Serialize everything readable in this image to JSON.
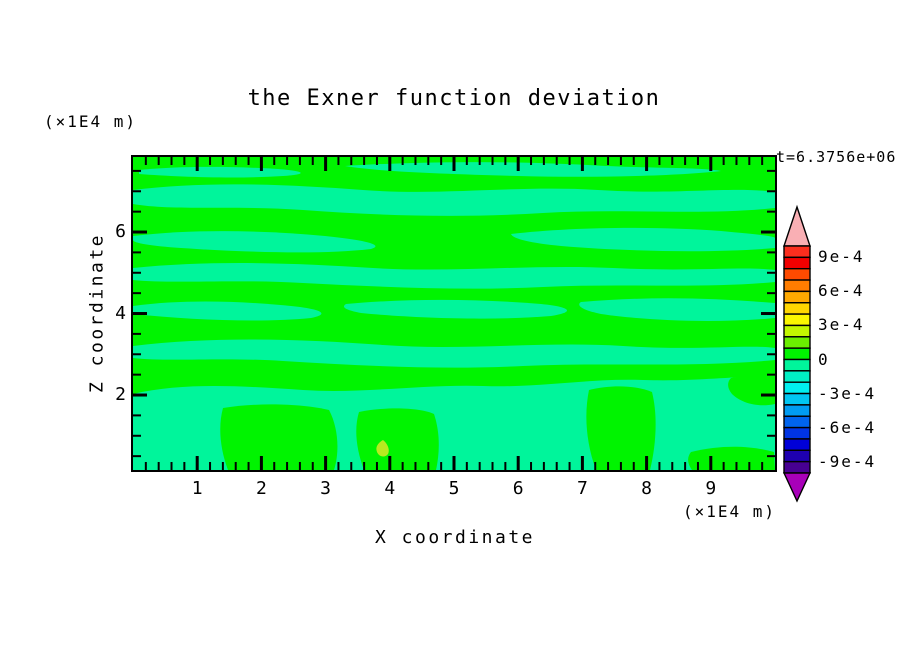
{
  "title": "the Exner function deviation",
  "time_annotation": "t=6.3756e+06",
  "axes": {
    "x": {
      "label": "X coordinate",
      "unit": "(×1E4 m)",
      "major_ticks": [
        "1",
        "2",
        "3",
        "4",
        "5",
        "6",
        "7",
        "8",
        "9"
      ]
    },
    "z": {
      "label": "Z coordinate",
      "unit": "(×1E4 m)",
      "major_ticks": [
        "2",
        "4",
        "6"
      ]
    }
  },
  "colorbar": {
    "labels": [
      {
        "text": "9e-4",
        "level": 9
      },
      {
        "text": "6e-4",
        "level": 6
      },
      {
        "text": "3e-4",
        "level": 3
      },
      {
        "text": "0",
        "level": 0
      },
      {
        "text": "-3e-4",
        "level": -3
      },
      {
        "text": "-6e-4",
        "level": -6
      },
      {
        "text": "-9e-4",
        "level": -9
      }
    ],
    "segment_colors_top_to_bottom": [
      "#FB2E1E",
      "#F10000",
      "#FF4A00",
      "#FF7D00",
      "#FFA900",
      "#FFD600",
      "#FBF600",
      "#C3F700",
      "#6BEE00",
      "#00F400",
      "#00F59B",
      "#00EFC4",
      "#00EFEF",
      "#00C6F2",
      "#009CF2",
      "#0064EE",
      "#0034E4",
      "#0000D8",
      "#1E00B0",
      "#470092"
    ],
    "over_range_color": "#F9AFB4",
    "under_range_color": "#A800B9"
  },
  "field_colors": {
    "positive": "#00F400",
    "negative": "#00F59B",
    "spot": "#B8EA20"
  },
  "chart_data": {
    "type": "heatmap",
    "subtype": "filled_contour",
    "title": "the Exner function deviation",
    "annotation": "t=6.3756e+06",
    "xlabel": "X coordinate",
    "x_unit_scale": "(×1E4 m)",
    "x_range": [
      0,
      10
    ],
    "x_major_tick_step": 1,
    "x_minor_tick_step": 0.2,
    "zlabel": "Z coordinate",
    "z_unit_scale": "(×1E4 m)",
    "z_range": [
      0,
      7.8
    ],
    "z_major_tick_step": 2,
    "z_minor_tick_step": 0.5,
    "contour_interval": 0.0001,
    "colorbar_range": [
      -0.001,
      0.001
    ],
    "colorbar_tick_values": [
      0.0009,
      0.0006,
      0.0003,
      0,
      -0.0003,
      -0.0006,
      -0.0009
    ],
    "value_range_displayed": [
      -0.0001,
      0.0002
    ],
    "legend_position": "right",
    "grid": false,
    "field_description": "Near-zero deviation field: horizontally streaked bands alternating between 0..1e-4 (green) and -1e-4..0 (spring green); lower region mostly -1e-4..0 with embedded 0..1e-4 columns and one tiny 1e-4..2e-4 spot near x=3.9, z=0.5",
    "sign_grid_rows_top_to_bottom": [
      "GGGMMMMMGG",
      "MMMGGMMGMM",
      "GMMGGGMMMG",
      "MMMMMGMMMM",
      "GMMGMMGMMG",
      "MMMMMMMMMM",
      "MGGMGMMGMM",
      "MGGMGMMMGM"
    ]
  }
}
